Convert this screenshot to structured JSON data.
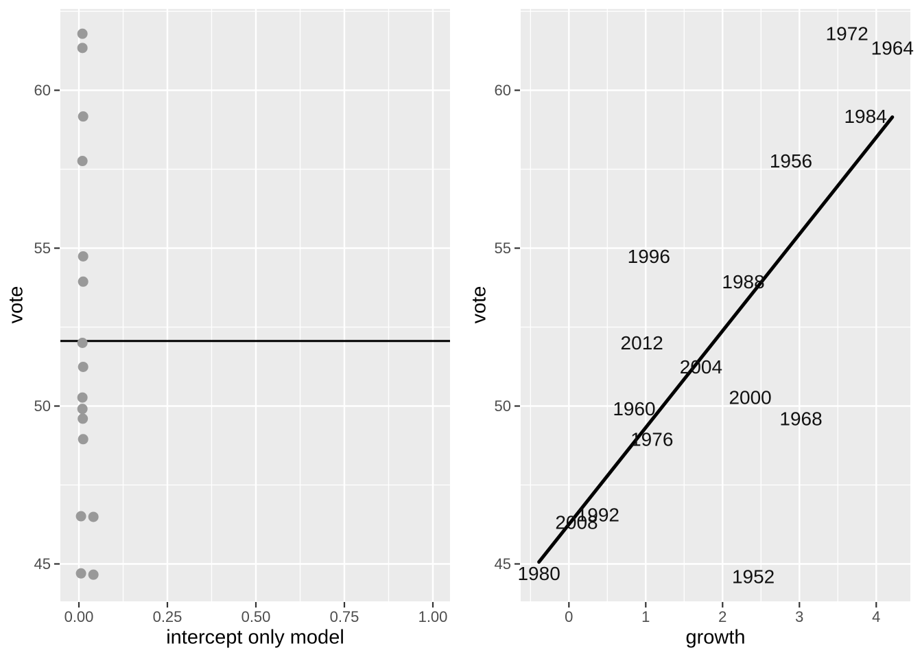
{
  "figure": {
    "background": "#FFFFFF",
    "panel_background": "#EBEBEB",
    "grid_color": "#FFFFFF",
    "tick_label_color": "#4D4D4D",
    "tick_mark_color": "#333333",
    "axis_title_color": "#000000",
    "point_color": "#999999",
    "line_color": "#000000"
  },
  "chart_data": [
    {
      "type": "scatter",
      "panel": "left",
      "xlabel": "intercept only model",
      "ylabel": "vote",
      "xlim": [
        -0.05,
        1.05
      ],
      "ylim": [
        43.8,
        62.6
      ],
      "grid": true,
      "x_ticks": {
        "values": [
          0,
          0.25,
          0.5,
          0.75,
          1.0
        ],
        "labels": [
          "0.00",
          "0.25",
          "0.50",
          "0.75",
          "1.00"
        ]
      },
      "y_ticks": {
        "values": [
          45,
          50,
          55,
          60
        ],
        "labels": [
          "45",
          "50",
          "55",
          "60"
        ]
      },
      "x_minor": [
        0.125,
        0.375,
        0.625,
        0.875
      ],
      "y_minor": [
        47.5,
        52.5,
        57.5,
        62.5
      ],
      "hline": {
        "y": 52.06
      },
      "points": [
        {
          "x": 0.01,
          "vote": 61.79
        },
        {
          "x": 0.01,
          "vote": 61.34
        },
        {
          "x": 0.012,
          "vote": 59.17
        },
        {
          "x": 0.01,
          "vote": 57.76
        },
        {
          "x": 0.012,
          "vote": 54.74
        },
        {
          "x": 0.012,
          "vote": 53.94
        },
        {
          "x": 0.01,
          "vote": 52.0
        },
        {
          "x": 0.012,
          "vote": 51.24
        },
        {
          "x": 0.01,
          "vote": 50.27
        },
        {
          "x": 0.01,
          "vote": 49.91
        },
        {
          "x": 0.011,
          "vote": 49.6
        },
        {
          "x": 0.012,
          "vote": 48.95
        },
        {
          "x": 0.006,
          "vote": 46.55,
          "y_draw": 46.51
        },
        {
          "x": 0.041,
          "vote": 46.32,
          "y_draw": 46.49
        },
        {
          "x": 0.006,
          "vote": 44.7,
          "y_draw": 44.7
        },
        {
          "x": 0.041,
          "vote": 44.6,
          "y_draw": 44.66
        }
      ]
    },
    {
      "type": "scatter",
      "panel": "right",
      "marker": "text-label",
      "xlabel": "growth",
      "ylabel": "vote",
      "xlim": [
        -0.62,
        4.44
      ],
      "ylim": [
        43.8,
        62.6
      ],
      "grid": true,
      "x_ticks": {
        "values": [
          0,
          1,
          2,
          3,
          4
        ],
        "labels": [
          "0",
          "1",
          "2",
          "3",
          "4"
        ]
      },
      "y_ticks": {
        "values": [
          45,
          50,
          55,
          60
        ],
        "labels": [
          "45",
          "50",
          "55",
          "60"
        ]
      },
      "x_minor": [
        -0.5,
        0.5,
        1.5,
        2.5,
        3.5
      ],
      "y_minor": [
        47.5,
        52.5,
        57.5,
        62.5
      ],
      "points": [
        {
          "label": "1952",
          "growth": 2.4,
          "vote": 44.6
        },
        {
          "label": "1956",
          "growth": 2.89,
          "vote": 57.76
        },
        {
          "label": "1960",
          "growth": 0.85,
          "vote": 49.91
        },
        {
          "label": "1964",
          "growth": 4.21,
          "vote": 61.34
        },
        {
          "label": "1968",
          "growth": 3.02,
          "vote": 49.6
        },
        {
          "label": "1972",
          "growth": 3.62,
          "vote": 61.79
        },
        {
          "label": "1976",
          "growth": 1.08,
          "vote": 48.95
        },
        {
          "label": "1980",
          "growth": -0.39,
          "vote": 44.7
        },
        {
          "label": "1984",
          "growth": 3.86,
          "vote": 59.17
        },
        {
          "label": "1988",
          "growth": 2.27,
          "vote": 53.94
        },
        {
          "label": "1992",
          "growth": 0.38,
          "vote": 46.55
        },
        {
          "label": "1996",
          "growth": 1.04,
          "vote": 54.74
        },
        {
          "label": "2000",
          "growth": 2.36,
          "vote": 50.27
        },
        {
          "label": "2004",
          "growth": 1.72,
          "vote": 51.24
        },
        {
          "label": "2008",
          "growth": 0.1,
          "vote": 46.32
        },
        {
          "label": "2012",
          "growth": 0.95,
          "vote": 52.0
        }
      ],
      "fit_line": {
        "x": [
          -0.39,
          4.21
        ],
        "y": [
          45.06,
          59.15
        ]
      }
    }
  ]
}
